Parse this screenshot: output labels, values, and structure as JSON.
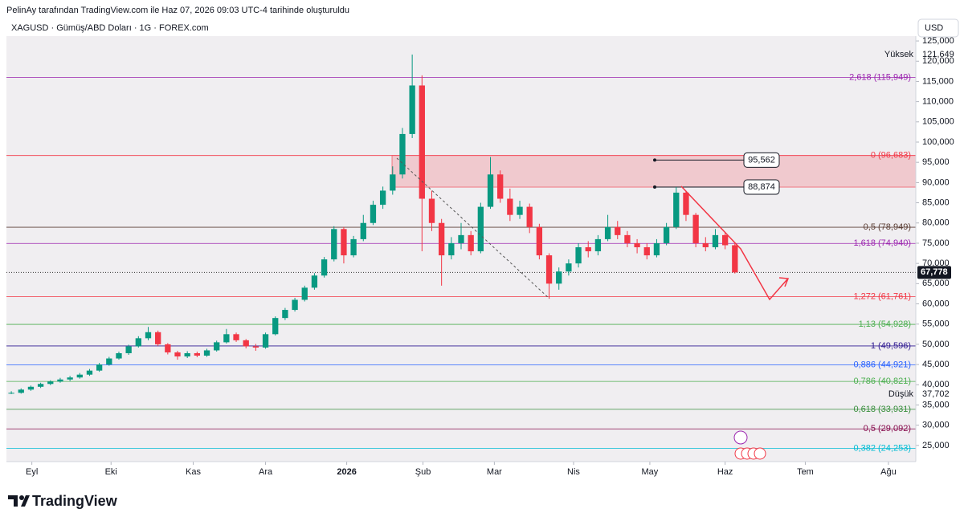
{
  "header": {
    "caption": "PelinAy tarafından TradingView.com ile Haz 07, 2026 09:03 UTC-4 tarihinde oluşturuldu",
    "symbol": "XAGUSD · Gümüş/ABD Doları · 1G · FOREX.com",
    "currency": "USD",
    "brand": "TradingView"
  },
  "chart_data": {
    "type": "candlestick",
    "open": [
      37800,
      38000,
      38800,
      39500,
      40200,
      40800,
      41300,
      41800,
      42500,
      43500,
      45000,
      46500,
      47800,
      49500,
      51500,
      53000,
      50000,
      48000,
      47000,
      47800,
      47200,
      48500,
      50500,
      52500,
      51000,
      49500,
      49200,
      52500,
      56500,
      58500,
      61000,
      64000,
      67000,
      71000,
      78500,
      72000,
      76000,
      80000,
      84500,
      88000,
      92000,
      102000,
      114000,
      86000,
      80000,
      72000,
      75000,
      77000,
      73000,
      84000,
      92000,
      86000,
      82000,
      84000,
      79000,
      72000,
      65000,
      68000,
      70000,
      74000,
      73000,
      76000,
      79000,
      77000,
      75000,
      74000,
      72000,
      75000,
      79000,
      87500,
      82000,
      75000,
      74000,
      77000,
      74500
    ],
    "high": [
      38400,
      39100,
      39800,
      40500,
      41100,
      41700,
      42200,
      42900,
      43900,
      45400,
      46900,
      48200,
      49900,
      52000,
      54300,
      53400,
      50300,
      48400,
      48300,
      48200,
      48900,
      50900,
      53800,
      52900,
      51300,
      50100,
      52900,
      56900,
      59000,
      61500,
      64500,
      67600,
      71600,
      79200,
      79000,
      76800,
      82000,
      85500,
      89000,
      94000,
      103500,
      121649,
      116500,
      88000,
      81000,
      76500,
      80000,
      78000,
      85000,
      96300,
      93000,
      88500,
      85500,
      84800,
      79800,
      72500,
      69000,
      71000,
      75000,
      75500,
      77000,
      82000,
      80500,
      78000,
      76000,
      75000,
      76000,
      80000,
      88874,
      88000,
      82500,
      76500,
      78500,
      77800,
      75000
    ],
    "low": [
      37702,
      37800,
      38500,
      39200,
      39900,
      40500,
      40900,
      41500,
      42200,
      43200,
      44700,
      46200,
      47400,
      49200,
      51000,
      49600,
      47500,
      46200,
      46600,
      46800,
      46900,
      48200,
      50200,
      50600,
      49000,
      48400,
      48900,
      52200,
      56000,
      58100,
      60600,
      63500,
      66500,
      70500,
      70000,
      71500,
      75500,
      79500,
      83500,
      87000,
      91000,
      101000,
      73000,
      78000,
      64500,
      71000,
      73500,
      72000,
      72500,
      83500,
      85000,
      80500,
      81000,
      77500,
      71000,
      61300,
      63500,
      67000,
      69000,
      71500,
      72000,
      75500,
      76000,
      74000,
      72500,
      71000,
      71500,
      74500,
      78500,
      80500,
      74000,
      73000,
      73500,
      73500,
      67500
    ],
    "close": [
      38000,
      38800,
      39500,
      40200,
      40800,
      41300,
      41800,
      42500,
      43500,
      45000,
      46500,
      47800,
      49500,
      51500,
      53000,
      50000,
      48000,
      47000,
      47800,
      47200,
      48500,
      50500,
      52500,
      51000,
      49500,
      49200,
      52500,
      56500,
      58500,
      61000,
      64000,
      67000,
      71000,
      78500,
      72000,
      76000,
      80000,
      84500,
      88000,
      92000,
      102000,
      114000,
      86000,
      80000,
      72000,
      75000,
      77000,
      73000,
      84000,
      92000,
      86000,
      82000,
      84000,
      79000,
      72000,
      65000,
      68000,
      70000,
      74000,
      73000,
      76000,
      79000,
      77000,
      75000,
      74000,
      72000,
      75000,
      79000,
      87500,
      82000,
      75000,
      74000,
      77000,
      74500,
      67778
    ],
    "up_color": "#089981",
    "down_color": "#f23645",
    "xlim": [
      -0.5,
      92.5
    ],
    "xticks": [
      {
        "value": 2.1,
        "label": "Eyl"
      },
      {
        "value": 10.2,
        "label": "Eki"
      },
      {
        "value": 18.6,
        "label": "Kas"
      },
      {
        "value": 26.0,
        "label": "Ara"
      },
      {
        "value": 34.3,
        "label": "2026"
      },
      {
        "value": 42.1,
        "label": "Şub"
      },
      {
        "value": 49.4,
        "label": "Mar"
      },
      {
        "value": 57.5,
        "label": "Nis"
      },
      {
        "value": 65.3,
        "label": "May"
      },
      {
        "value": 73.0,
        "label": "Haz"
      },
      {
        "value": 81.2,
        "label": "Tem"
      },
      {
        "value": 89.7,
        "label": "Ağu"
      }
    ],
    "ylim": [
      21000,
      126200
    ],
    "yticks": [
      {
        "value": 25000,
        "label": "25,000"
      },
      {
        "value": 30000,
        "label": "30,000"
      },
      {
        "value": 35000,
        "label": "35,000"
      },
      {
        "value": 40000,
        "label": "40,000"
      },
      {
        "value": 45000,
        "label": "45,000"
      },
      {
        "value": 50000,
        "label": "50,000"
      },
      {
        "value": 55000,
        "label": "55,000"
      },
      {
        "value": 60000,
        "label": "60,000"
      },
      {
        "value": 65000,
        "label": "65,000"
      },
      {
        "value": 70000,
        "label": "70,000"
      },
      {
        "value": 75000,
        "label": "75,000"
      },
      {
        "value": 80000,
        "label": "80,000"
      },
      {
        "value": 85000,
        "label": "85,000"
      },
      {
        "value": 90000,
        "label": "90,000"
      },
      {
        "value": 95000,
        "label": "95,000"
      },
      {
        "value": 100000,
        "label": "100,000"
      },
      {
        "value": 105000,
        "label": "105,000"
      },
      {
        "value": 110000,
        "label": "110,000"
      },
      {
        "value": 115000,
        "label": "115,000"
      },
      {
        "value": 120000,
        "label": "120,000"
      },
      {
        "value": 125000,
        "label": "125,000"
      }
    ],
    "fib_levels": [
      {
        "label": "2,618 (115,949)",
        "value": 115949,
        "color": "#9c27b0"
      },
      {
        "label": "0 (96,683)",
        "value": 96683,
        "color": "#f23645"
      },
      {
        "label": "0,5 (78,949)",
        "value": 78949,
        "color": "#5d4037"
      },
      {
        "label": "1,618 (74,940)",
        "value": 74940,
        "color": "#9c27b0"
      },
      {
        "label": "1,272 (61,761)",
        "value": 61761,
        "color": "#f23645"
      },
      {
        "label": "1,13 (54,928)",
        "value": 54928,
        "color": "#4caf50"
      },
      {
        "label": "1 (49,596)",
        "value": 49596,
        "color": "#311b92"
      },
      {
        "label": "0,886 (44,921)",
        "value": 44921,
        "color": "#2962ff"
      },
      {
        "label": "0,786 (40,821)",
        "value": 40821,
        "color": "#4caf50"
      },
      {
        "label": "0,618 (33,931)",
        "value": 33931,
        "color": "#388e3c"
      },
      {
        "label": "0,5 (29,092)",
        "value": 29092,
        "color": "#880e4f"
      },
      {
        "label": "0,382 (24,253)",
        "value": 24253,
        "color": "#00bcd4"
      }
    ],
    "zone": [
      88874,
      96683
    ],
    "price_boxes": [
      {
        "value": 95562,
        "label": "95,562"
      },
      {
        "value": 88874,
        "label": "88,874"
      }
    ],
    "stats": [
      {
        "name": "Yüksek",
        "value": 121649,
        "label": "121,649"
      },
      {
        "name": "Düşük",
        "value": 37702,
        "label": "37,702"
      }
    ],
    "last_price": {
      "value": 67778,
      "label": "67,778"
    }
  }
}
